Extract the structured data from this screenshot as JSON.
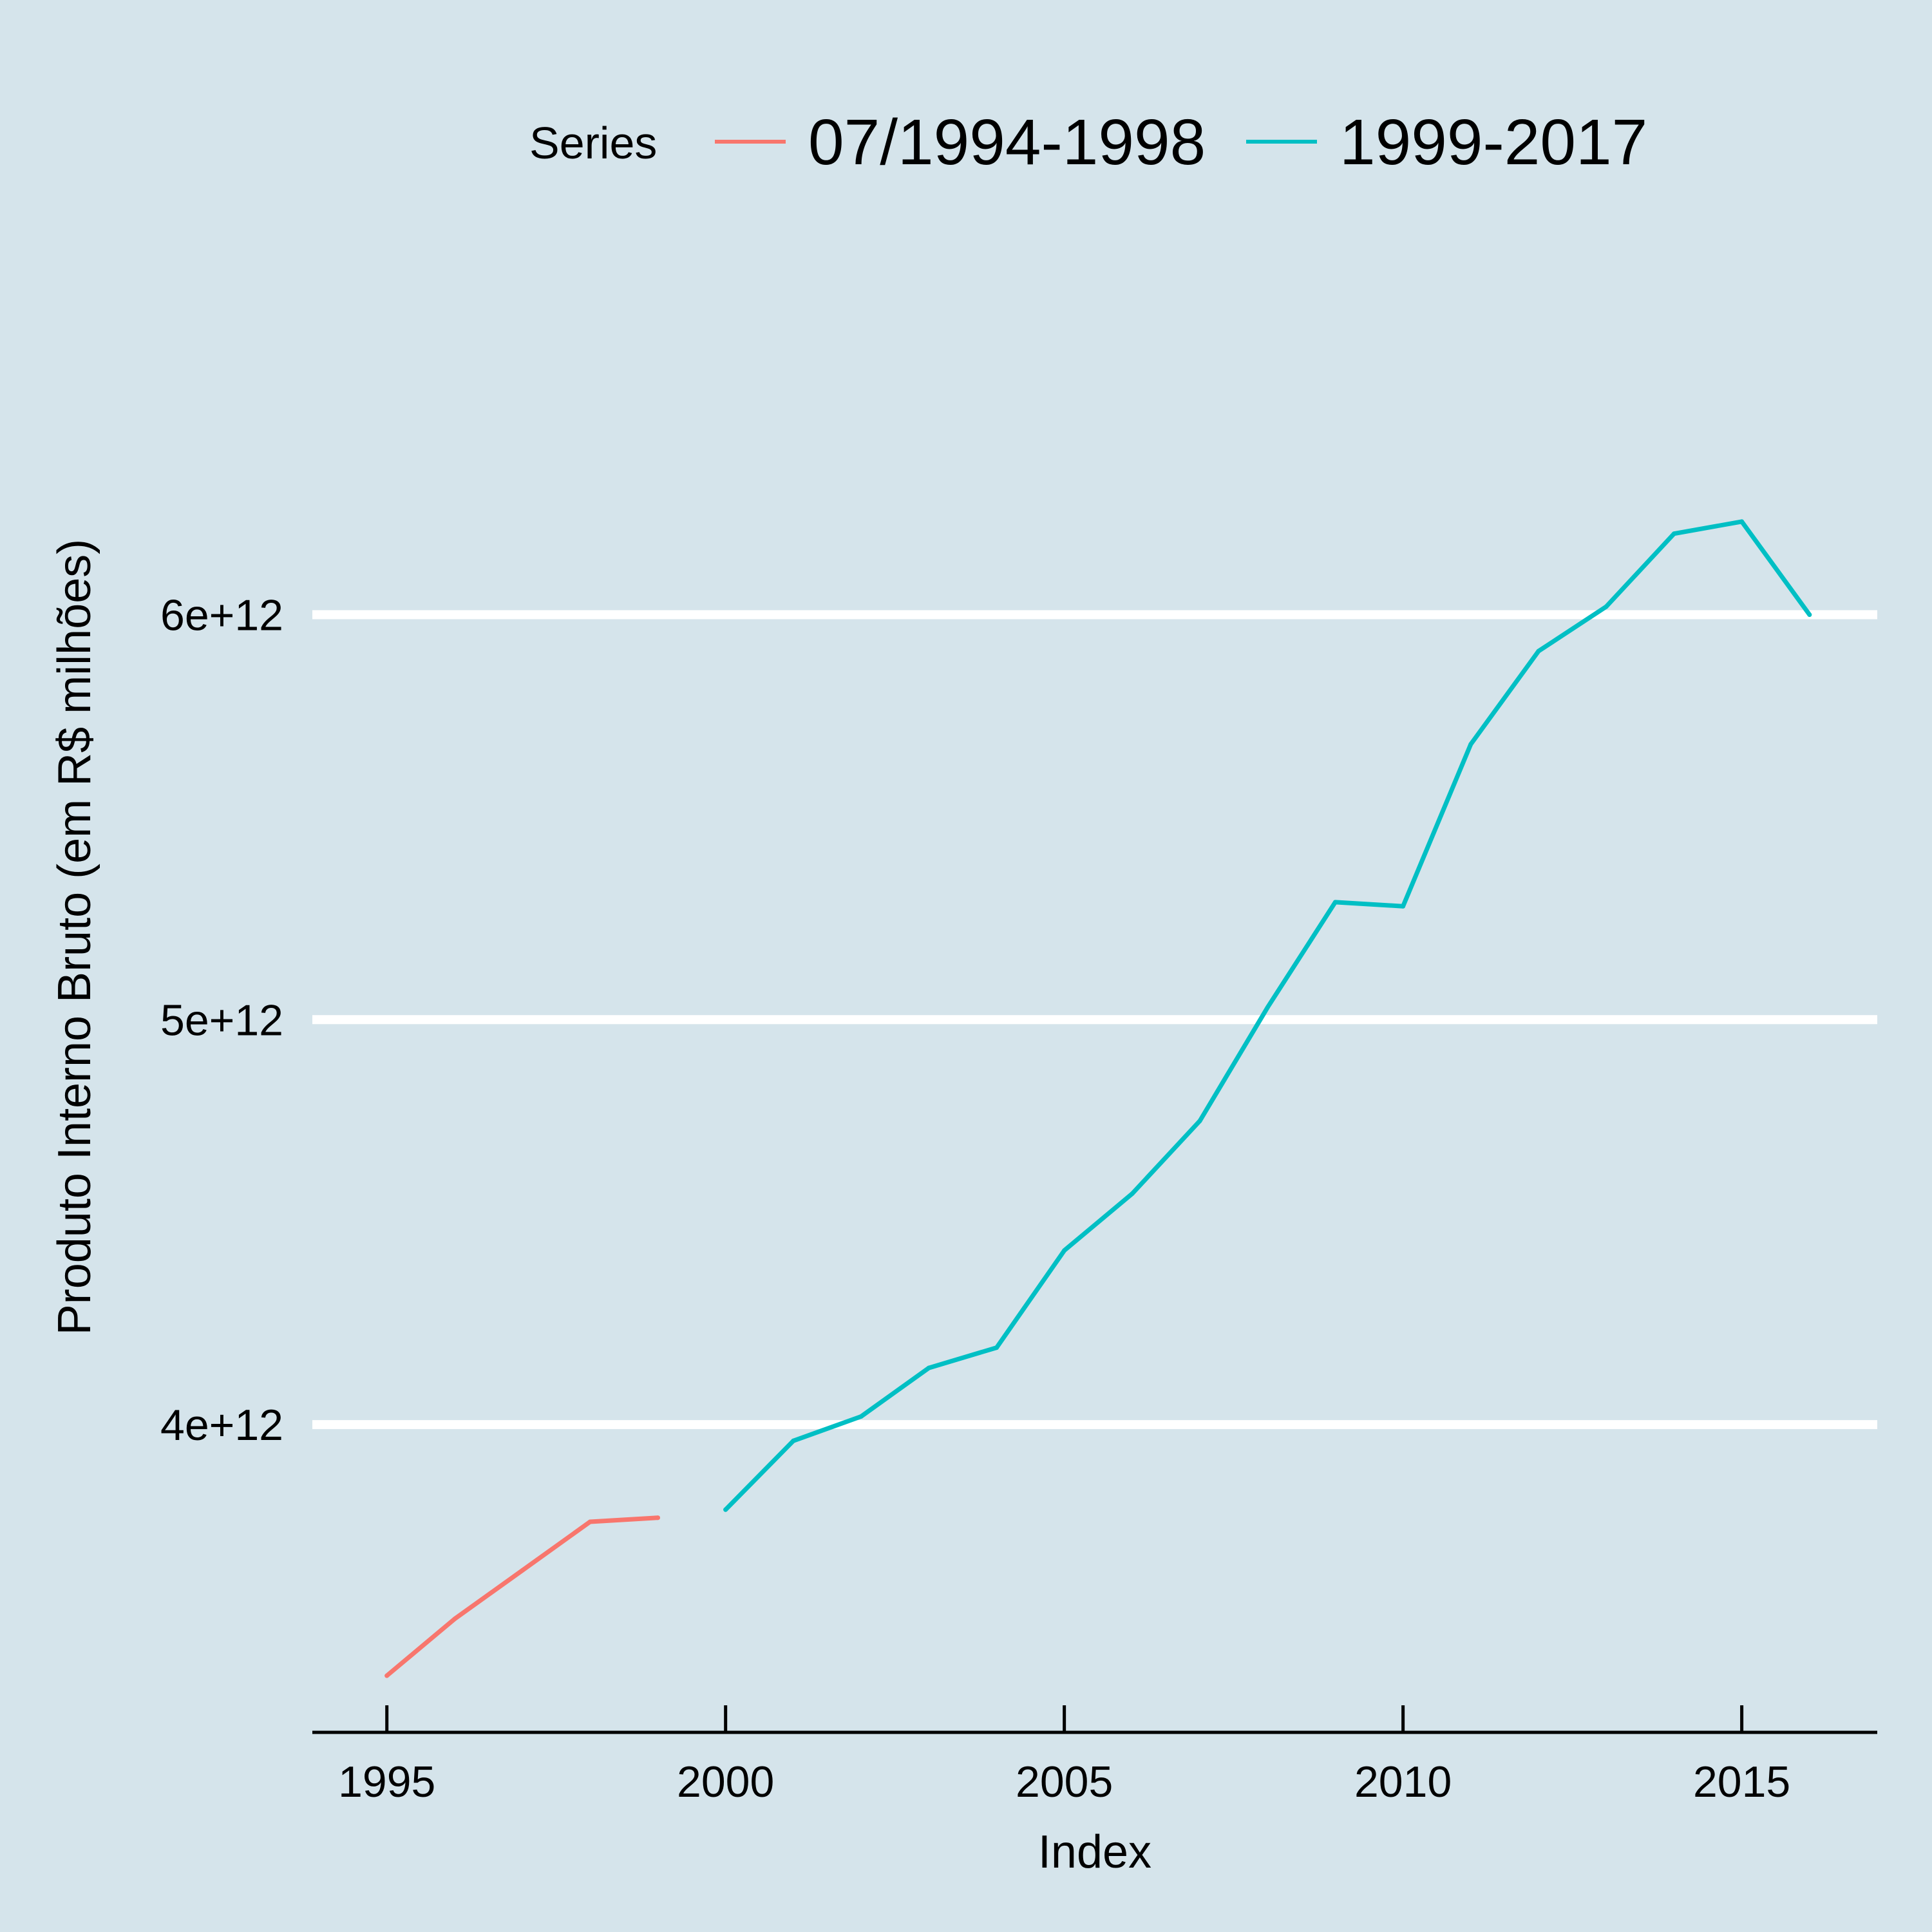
{
  "chart_data": {
    "type": "line",
    "xlabel": "Index",
    "ylabel": "Produto Interno Bruto (em R$ milhões)",
    "xlim": [
      1993.9,
      2017.0
    ],
    "ylim": [
      3240000000000.0,
      6850000000000.0
    ],
    "x_ticks": [
      1995,
      2000,
      2005,
      2010,
      2015
    ],
    "x_tick_labels": [
      "1995",
      "2000",
      "2005",
      "2010",
      "2015"
    ],
    "y_ticks": [
      4000000000000.0,
      5000000000000.0,
      6000000000000.0
    ],
    "y_tick_labels": [
      "4e+12",
      "5e+12",
      "6e+12"
    ],
    "grid": "horizontal major lines",
    "legend": {
      "title": "Series",
      "position": "top"
    },
    "series": [
      {
        "name": "07/1994-1998",
        "color": "#f8766d",
        "x": [
          1995,
          1996,
          1997,
          1998,
          1999
        ],
        "y": [
          3380000000000.0,
          3520000000000.0,
          3640000000000.0,
          3760000000000.0,
          3770000000000.0
        ]
      },
      {
        "name": "1999-2017",
        "color": "#00bfc4",
        "x": [
          2000,
          2001,
          2002,
          2003,
          2004,
          2005,
          2006,
          2007,
          2008,
          2009,
          2010,
          2011,
          2012,
          2013,
          2014,
          2015,
          2016
        ],
        "y": [
          3790000000000.0,
          3960000000000.0,
          4020000000000.0,
          4140000000000.0,
          4190000000000.0,
          4430000000000.0,
          4570000000000.0,
          4750000000000.0,
          5030000000000.0,
          5290000000000.0,
          5280000000000.0,
          5680000000000.0,
          5910000000000.0,
          6020000000000.0,
          6200000000000.0,
          6230000000000.0,
          6000000000000.0
        ]
      }
    ]
  }
}
